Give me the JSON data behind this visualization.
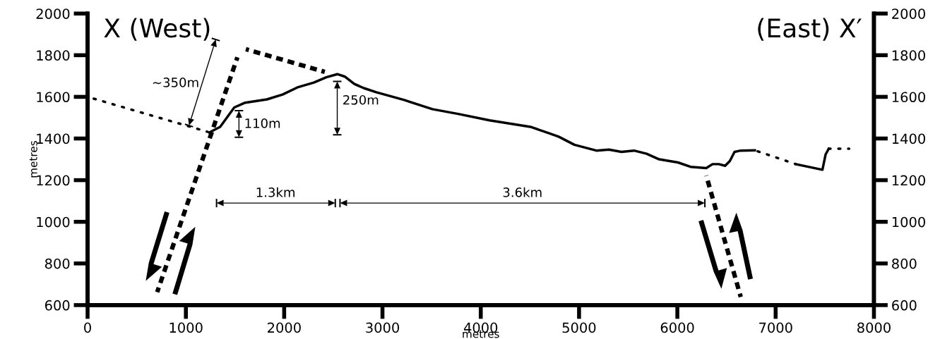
{
  "chart_data": {
    "type": "line",
    "xlabel": "metres",
    "ylabel": "metres",
    "xlim": [
      0,
      8000
    ],
    "xticks": [
      0,
      1000,
      2000,
      3000,
      4000,
      5000,
      6000,
      7000,
      8000
    ],
    "ylim": [
      600,
      2000
    ],
    "yticks": [
      600,
      800,
      1000,
      1200,
      1400,
      1600,
      1800,
      2000
    ],
    "y2lim": [
      600,
      2000
    ],
    "y2ticks": [
      600,
      800,
      1000,
      1200,
      1400,
      1600,
      1800,
      2000
    ],
    "grid": false,
    "legend": false,
    "marker": "none",
    "series": [
      {
        "color": "#000000",
        "line_style": "dotted",
        "x": [
          0,
          1222
        ],
        "values": [
          1600,
          1432
        ]
      },
      {
        "color": "#000000",
        "line_style": "solid",
        "x": [
          1238,
          1349,
          1492,
          1603,
          1825,
          1984,
          2143,
          2302,
          2429,
          2540,
          2619,
          2714,
          2810,
          2937,
          3222,
          3286,
          3508,
          3770,
          4089,
          4505,
          4696,
          4792,
          4952,
          5176,
          5304,
          5431,
          5559,
          5687,
          5815,
          6006,
          6134,
          6294,
          6358,
          6422,
          6486,
          6534,
          6582,
          6645,
          6789
        ],
        "values": [
          1429,
          1456,
          1549,
          1572,
          1588,
          1611,
          1647,
          1669,
          1694,
          1709,
          1697,
          1662,
          1642,
          1622,
          1585,
          1575,
          1541,
          1518,
          1487,
          1456,
          1425,
          1409,
          1370,
          1342,
          1347,
          1336,
          1342,
          1327,
          1300,
          1285,
          1264,
          1258,
          1277,
          1277,
          1269,
          1292,
          1336,
          1342,
          1343
        ]
      },
      {
        "color": "#000000",
        "line_style": "dotted",
        "x": [
          6789,
          7205
        ],
        "values": [
          1343,
          1277
        ]
      },
      {
        "color": "#000000",
        "line_style": "solid",
        "x": [
          7205,
          7476,
          7508,
          7540
        ],
        "values": [
          1277,
          1250,
          1323,
          1351
        ]
      },
      {
        "color": "#000000",
        "line_style": "dotted",
        "x": [
          7540,
          7748
        ],
        "values": [
          1351,
          1351
        ]
      },
      {
        "color": "#000000",
        "line_style": "dashed",
        "x": [
          708,
          1524
        ],
        "values": [
          662,
          1790
        ]
      },
      {
        "color": "#000000",
        "line_style": "dashed",
        "x": [
          1610,
          2413
        ],
        "values": [
          1829,
          1720
        ]
      },
      {
        "color": "#000000",
        "line_style": "dashed",
        "x": [
          6294,
          6645
        ],
        "values": [
          1222,
          639
        ]
      }
    ],
    "annotations": [
      "X (West)",
      "(East) X′",
      "~350m",
      "110m",
      "250m",
      "1.3km",
      "3.6km"
    ]
  }
}
